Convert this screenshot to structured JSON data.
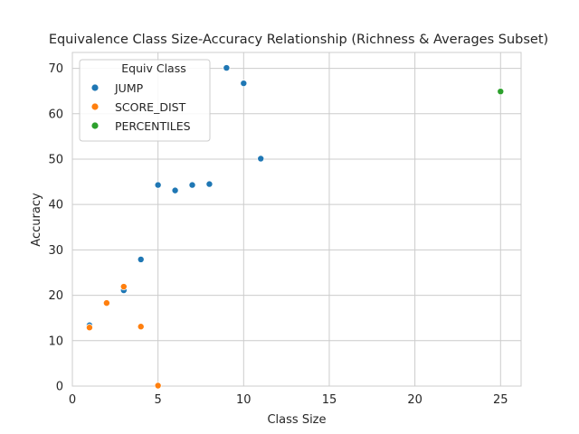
{
  "chart_data": {
    "type": "scatter",
    "title": "Equivalence Class Size-Accuracy Relationship (Richness & Averages Subset)",
    "xlabel": "Class Size",
    "ylabel": "Accuracy",
    "xlim": [
      0,
      26.2
    ],
    "ylim": [
      0,
      73.5
    ],
    "xticks": [
      0,
      5,
      10,
      15,
      20,
      25
    ],
    "yticks": [
      0,
      10,
      20,
      30,
      40,
      50,
      60,
      70
    ],
    "grid": true,
    "legend": {
      "title": "Equiv Class",
      "placement": "top-left"
    },
    "series": [
      {
        "name": "JUMP",
        "color": "#1f77b4",
        "points": [
          {
            "x": 1,
            "y": 13.4
          },
          {
            "x": 2,
            "y": 18.3
          },
          {
            "x": 3,
            "y": 21.1
          },
          {
            "x": 4,
            "y": 27.9
          },
          {
            "x": 5,
            "y": 44.3
          },
          {
            "x": 6,
            "y": 43.1
          },
          {
            "x": 7,
            "y": 44.3
          },
          {
            "x": 8,
            "y": 44.5
          },
          {
            "x": 9,
            "y": 70.1
          },
          {
            "x": 10,
            "y": 66.7
          },
          {
            "x": 11,
            "y": 50.1
          }
        ]
      },
      {
        "name": "SCORE_DIST",
        "color": "#ff7f0e",
        "points": [
          {
            "x": 1,
            "y": 12.9
          },
          {
            "x": 2,
            "y": 18.3
          },
          {
            "x": 3,
            "y": 21.9
          },
          {
            "x": 4,
            "y": 13.1
          },
          {
            "x": 5,
            "y": 0.1
          }
        ]
      },
      {
        "name": "PERCENTILES",
        "color": "#2ca02c",
        "points": [
          {
            "x": 25,
            "y": 64.9
          }
        ]
      }
    ]
  }
}
